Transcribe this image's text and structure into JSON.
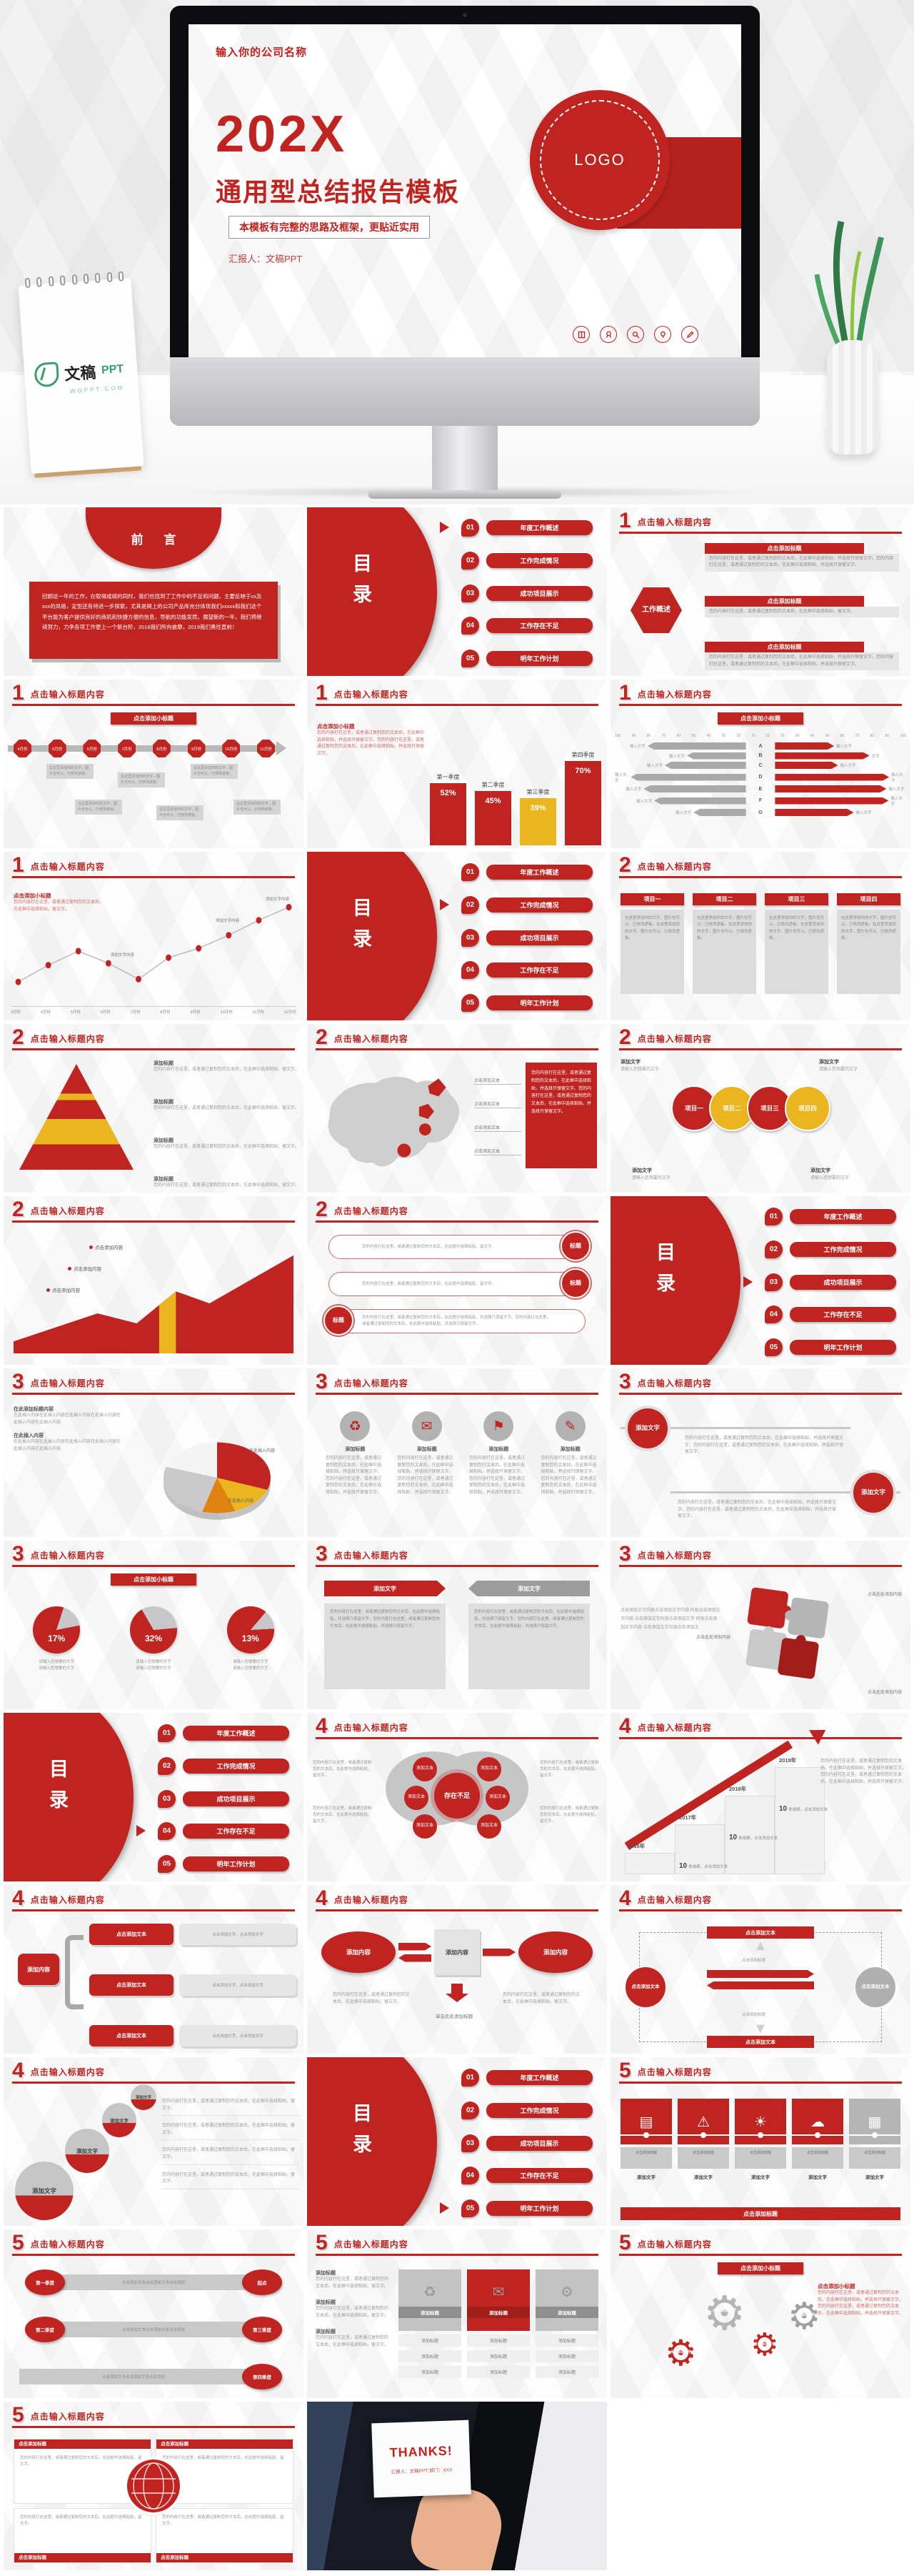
{
  "hero": {
    "company_name": "输入你的公司名称",
    "year": "202X",
    "title": "通用型总结报告模板",
    "subtitle": "本模板有完整的思路及框架，更贴近实用",
    "presenter": "汇报人：文稿PPT",
    "logo_text": "LOGO",
    "icons": [
      "book-icon",
      "medal-icon",
      "search-icon",
      "bulb-icon",
      "pen-icon"
    ],
    "calendar_brand_cn": "文稿",
    "calendar_brand_en": "PPT",
    "calendar_sub": "WGPPT.COM"
  },
  "colors": {
    "red": "#bf2420",
    "dark_red": "#a01d1a",
    "yellow": "#eab51e",
    "gray": "#c9c9c9"
  },
  "sections": {
    "s1": "1",
    "s2": "2",
    "s3": "3",
    "s4": "4",
    "s5": "5"
  },
  "section_title": "点击输入标题内容",
  "toc": {
    "word": "目录",
    "items": [
      {
        "num": "01",
        "label": "年度工作概述"
      },
      {
        "num": "02",
        "label": "工作完成情况"
      },
      {
        "num": "03",
        "label": "成功项目展示"
      },
      {
        "num": "04",
        "label": "工作存在不足"
      },
      {
        "num": "05",
        "label": "明年工作计划"
      }
    ]
  },
  "preface": {
    "title": "前 言",
    "body": "回顾这一年的工作，在取得成绩的同时，我们也找到了工作中的不足和问题，主要反映于xx及xxx的风格，定型还有待进一步探索，尤其是网上的公司产品库充分体现我们xxxxx和我们这个平台能为客户提供良好的商机和快捷方便的信息，导航的功能发挥。展望新的一年，我们将继续努力，力争各项工作更上一个新台阶，2018我们所向披靡，2019我们勇往直前！"
  },
  "ph": {
    "add_small_title": "点击添加小标题",
    "add_title": "点击添加标题",
    "add_heading": "添加标题",
    "add_text": "添加文字",
    "add_text2": "添加文本",
    "add_content": "添加内容",
    "click_text": "点击添加文本",
    "click_content": "点击添加内容",
    "click_word": "点击添加文字",
    "click_word2": "点击添加文字，点击添加文字",
    "click_here": "点击此处添加内容",
    "single_click": "单击此处添加标题",
    "input_text": "输入文字",
    "body": "您的内容打在这里，或者通过复制您的文本后，在此框中选择粘贴，并选择只保留文字。您的内容打在这里，或者通过复制您的文本后，在此框中选择粘贴，并选择只保留文字。",
    "body_short": "您的内容打在这里，或者通过复制您的文本后，在此框中选择粘贴，留文字。",
    "cell": "在这里添加你的文字，图片也可以，已修改遮板。在这里添加你的文字，图片也可以，已修改遮板。",
    "cell_short": "在这里添加你的文字，图片也可以，已修改遮板。",
    "insert_title": "在此添加标题内容",
    "insert_content": "在此插入内容",
    "insert_lines": "在此插入内容在此插入内容在此插入内容在此插入内容在此插入内容在此插入内容",
    "want_text": "请输入您想要的文字",
    "dot_label": "添加文字内容",
    "puzzle_line": "点击添加文字内容点击添加文字内容 内容点击添加文字内容 点击添加文字内容点击添加文字 内容点击添加文字内容 点击添加文字内容点击添加文",
    "overview_hex": "工作概述",
    "center_circle": "存在不足",
    "pill_title": "标题"
  },
  "chart_data": [
    {
      "type": "bar",
      "title": "季度占比柱状图（第三季度为黄色强调色）",
      "categories": [
        "第一季度",
        "第二季度",
        "第三季度",
        "第四季度"
      ],
      "values": [
        52,
        45,
        39,
        70
      ],
      "unit": "%",
      "colors": [
        "#bf2420",
        "#bf2420",
        "#eab51e",
        "#bf2420"
      ],
      "ylim": [
        0,
        100
      ],
      "grid": false
    },
    {
      "type": "bar",
      "subtype": "tornado",
      "title": "左右对比条形图",
      "categories": [
        "A",
        "B",
        "C",
        "D",
        "E",
        "F",
        "G"
      ],
      "series": [
        {
          "name": "左侧(灰)",
          "values": [
            75,
            45,
            62,
            100,
            78,
            70,
            40
          ],
          "estimated": true
        },
        {
          "name": "右侧(红)",
          "values": [
            45,
            72,
            48,
            92,
            85,
            88,
            60
          ],
          "estimated": true
        }
      ],
      "axis_ticks_left": [
        "100",
        "90",
        "80",
        "70",
        "60",
        "50",
        "40",
        "30",
        "20",
        "10"
      ],
      "axis_ticks_right": [
        "10",
        "20",
        "30",
        "40",
        "50",
        "60",
        "70",
        "80",
        "90",
        "100"
      ],
      "bar_label": "输入文字"
    },
    {
      "type": "line",
      "title": "月度折线图",
      "x": [
        "3月份",
        "4月份",
        "5月份",
        "6月份",
        "7月份",
        "8月份",
        "9月份",
        "10月份",
        "11月份",
        "12月份"
      ],
      "values": [
        12,
        30,
        45,
        32,
        15,
        38,
        48,
        62,
        78,
        92
      ],
      "estimated": true,
      "point_label": "添加文字内容"
    },
    {
      "type": "pie",
      "title": "3D饼图（占位）",
      "labels": [
        "在此插入内容",
        "在此插入内容",
        "在此插入内容",
        "在此插入内容",
        "在此插入内容"
      ],
      "values": [
        30,
        14,
        10,
        26,
        20
      ],
      "estimated": true,
      "colors": [
        "#bf2420",
        "#eab51e",
        "#e0820f",
        "#c9c9c9",
        "#f4f4f4"
      ]
    },
    {
      "type": "pie",
      "subtype": "donut-trio",
      "title": "百分比圆形图",
      "labels": [
        "请输入您想要的文字",
        "请输入您想要的文字",
        "请输入您想要的文字"
      ],
      "values": [
        17,
        32,
        13
      ],
      "unit": "%"
    }
  ],
  "quarters": {
    "items": [
      {
        "label": "第一季度",
        "pct": "52%",
        "v": 52,
        "color": "#bf2420"
      },
      {
        "label": "第二季度",
        "pct": "45%",
        "v": 45,
        "color": "#bf2420"
      },
      {
        "label": "第三季度",
        "pct": "39%",
        "v": 39,
        "color": "#eab51e"
      },
      {
        "label": "第四季度",
        "pct": "70%",
        "v": 70,
        "color": "#bf2420"
      }
    ]
  },
  "tornado": {
    "ticks_left": [
      "100",
      "90",
      "80",
      "70",
      "60",
      "50",
      "40",
      "30",
      "20",
      "10"
    ],
    "ticks_right": [
      "10",
      "20",
      "30",
      "40",
      "50",
      "60",
      "70",
      "80",
      "90",
      "100"
    ],
    "rows": [
      {
        "r": "A",
        "lv": 75,
        "rv": 45,
        "rl": "输入文字"
      },
      {
        "r": "B",
        "lv": 45,
        "rv": 72,
        "rl": "文字"
      },
      {
        "r": "C",
        "lv": 62,
        "rv": 48,
        "rl": "输入文字"
      },
      {
        "r": "D",
        "lv": 100,
        "rv": 92,
        "rl": "输入文字"
      },
      {
        "r": "E",
        "lv": 78,
        "rv": 85,
        "rl": "输入文字"
      },
      {
        "r": "F",
        "lv": 70,
        "rv": 88,
        "rl": "输入文字"
      },
      {
        "r": "G",
        "lv": 40,
        "rv": 60,
        "rl": "输入文字"
      }
    ]
  },
  "line": {
    "points": [
      12,
      30,
      45,
      32,
      15,
      38,
      48,
      62,
      78,
      92
    ],
    "months": [
      "3月份",
      "4月份",
      "5月份",
      "6月份",
      "7月份",
      "8月份",
      "9月份",
      "10月份",
      "11月份",
      "12月份"
    ]
  },
  "timeline_months": [
    "4月份",
    "5月份",
    "6月份",
    "7月份",
    "8月份",
    "9月份",
    "10月份",
    "11月份"
  ],
  "table4": [
    "项目一",
    "项目二",
    "项目三",
    "项目四"
  ],
  "circles4": [
    {
      "label": "项目一",
      "color": "#bf2420"
    },
    {
      "label": "项目二",
      "color": "#eab51e"
    },
    {
      "label": "项目三",
      "color": "#bf2420"
    },
    {
      "label": "项目四",
      "color": "#eab51e"
    }
  ],
  "donuts": [
    {
      "pct": "17%"
    },
    {
      "pct": "32%"
    },
    {
      "pct": "13%"
    }
  ],
  "stairs": {
    "years": [
      "2016年",
      "2017年",
      "2018年",
      "2019年"
    ],
    "num": "10",
    "text": "条成绩，点击添加文本"
  },
  "snake": {
    "labels": [
      "第一季度",
      "起点",
      "第二季度",
      "第三季度",
      "第四季度"
    ],
    "bar": "点击添加文本点击添加文本点击添加"
  },
  "cards5": [
    {
      "glyph": "▤",
      "bg": "#bf2420",
      "fg": "#ffffff",
      "boxred": ""
    },
    {
      "glyph": "⚠",
      "bg": "#bf2420",
      "fg": "#ffffff",
      "boxred": ""
    },
    {
      "glyph": "☀",
      "bg": "#bf2420",
      "fg": "#ffffff",
      "boxred": ""
    },
    {
      "glyph": "☁",
      "bg": "#bf2420",
      "fg": "#ffffff",
      "boxred": ""
    },
    {
      "glyph": "▦",
      "bg": "#b5b5b5",
      "fg": "#555555",
      "boxred": "red"
    }
  ],
  "icons4": [
    "♻",
    "✉",
    "⚑",
    "✎"
  ],
  "table3_icons": [
    {
      "glyph": "♻",
      "bg": "#c3c3c3",
      "fg": "#bf2420",
      "barbg": "#8f8f8f"
    },
    {
      "glyph": "✉",
      "bg": "#bf2420",
      "fg": "#ffffff",
      "barbg": "#a01d1a"
    },
    {
      "glyph": "⚙",
      "bg": "#c3c3c3",
      "fg": "#bf2420",
      "barbg": "#8f8f8f"
    }
  ],
  "thanks": {
    "title": "THANKS!",
    "line": "汇报人：文稿PPT  部门：XXX"
  }
}
